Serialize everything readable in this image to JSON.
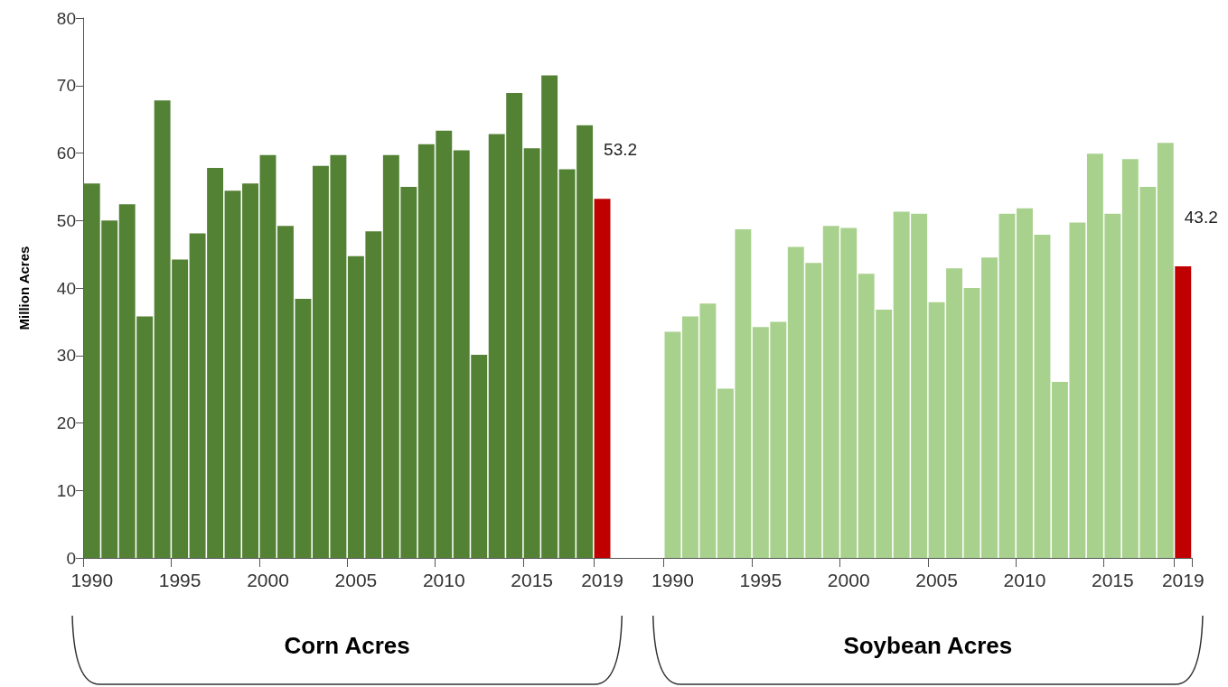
{
  "chart_data": {
    "type": "bar",
    "ylabel": "Million Acres",
    "categories": [
      "1990",
      null,
      null,
      null,
      null,
      "1995",
      null,
      null,
      null,
      null,
      "2000",
      null,
      null,
      null,
      null,
      "2005",
      null,
      null,
      null,
      null,
      "2010",
      null,
      null,
      null,
      null,
      "2015",
      null,
      null,
      null,
      "2019",
      null,
      null,
      null,
      "1990",
      null,
      null,
      null,
      null,
      "1995",
      null,
      null,
      null,
      null,
      "2000",
      null,
      null,
      null,
      null,
      "2005",
      null,
      null,
      null,
      null,
      "2010",
      null,
      null,
      null,
      null,
      "2015",
      null,
      null,
      null,
      "2019"
    ],
    "series": [
      {
        "values": [
          55.5,
          50.0,
          52.4,
          35.8,
          67.8,
          44.2,
          48.1,
          57.8,
          54.4,
          55.5,
          59.7,
          49.2,
          38.4,
          58.1,
          59.7,
          44.7,
          48.4,
          59.7,
          55.0,
          61.3,
          63.3,
          60.4,
          30.1,
          62.8,
          68.9,
          60.7,
          71.5,
          57.6,
          64.1,
          53.2,
          null,
          null,
          null,
          null,
          null,
          null,
          null,
          null,
          null,
          null,
          null,
          null,
          null,
          null,
          null,
          null,
          null,
          null,
          null,
          null,
          null,
          null,
          null,
          null,
          null,
          null,
          null,
          null,
          null,
          null,
          null,
          null,
          null
        ],
        "colors": [
          "#548235",
          "#548235",
          "#548235",
          "#548235",
          "#548235",
          "#548235",
          "#548235",
          "#548235",
          "#548235",
          "#548235",
          "#548235",
          "#548235",
          "#548235",
          "#548235",
          "#548235",
          "#548235",
          "#548235",
          "#548235",
          "#548235",
          "#548235",
          "#548235",
          "#548235",
          "#548235",
          "#548235",
          "#548235",
          "#548235",
          "#548235",
          "#548235",
          "#548235",
          "#c00000",
          null,
          null,
          null,
          null,
          null,
          null,
          null,
          null,
          null,
          null,
          null,
          null,
          null,
          null,
          null,
          null,
          null,
          null,
          null,
          null,
          null,
          null,
          null,
          null,
          null,
          null,
          null,
          null,
          null,
          null,
          null,
          null,
          null
        ],
        "value_labels": [
          null,
          null,
          null,
          null,
          null,
          null,
          null,
          null,
          null,
          null,
          null,
          null,
          null,
          null,
          null,
          null,
          null,
          null,
          null,
          null,
          null,
          null,
          null,
          null,
          null,
          null,
          null,
          null,
          null,
          "53.2",
          null,
          null,
          null,
          null,
          null,
          null,
          null,
          null,
          null,
          null,
          null,
          null,
          null,
          null,
          null,
          null,
          null,
          null,
          null,
          null,
          null,
          null,
          null,
          null,
          null,
          null,
          null,
          null,
          null,
          null,
          null,
          null,
          null
        ]
      },
      {
        "values": [
          null,
          null,
          null,
          null,
          null,
          null,
          null,
          null,
          null,
          null,
          null,
          null,
          null,
          null,
          null,
          null,
          null,
          null,
          null,
          null,
          null,
          null,
          null,
          null,
          null,
          null,
          null,
          null,
          null,
          null,
          null,
          null,
          null,
          33.5,
          35.8,
          37.7,
          25.1,
          48.7,
          34.2,
          35.0,
          46.1,
          43.7,
          49.2,
          48.9,
          42.1,
          36.8,
          51.3,
          51.0,
          37.9,
          42.9,
          40.0,
          44.5,
          51.0,
          51.8,
          47.9,
          26.1,
          49.7,
          59.9,
          51.0,
          59.1,
          55.0,
          61.5,
          43.2
        ],
        "colors": [
          null,
          null,
          null,
          null,
          null,
          null,
          null,
          null,
          null,
          null,
          null,
          null,
          null,
          null,
          null,
          null,
          null,
          null,
          null,
          null,
          null,
          null,
          null,
          null,
          null,
          null,
          null,
          null,
          null,
          null,
          null,
          null,
          null,
          "#a9d18e",
          "#a9d18e",
          "#a9d18e",
          "#a9d18e",
          "#a9d18e",
          "#a9d18e",
          "#a9d18e",
          "#a9d18e",
          "#a9d18e",
          "#a9d18e",
          "#a9d18e",
          "#a9d18e",
          "#a9d18e",
          "#a9d18e",
          "#a9d18e",
          "#a9d18e",
          "#a9d18e",
          "#a9d18e",
          "#a9d18e",
          "#a9d18e",
          "#a9d18e",
          "#a9d18e",
          "#a9d18e",
          "#a9d18e",
          "#a9d18e",
          "#a9d18e",
          "#a9d18e",
          "#a9d18e",
          "#a9d18e",
          "#c00000"
        ],
        "value_labels": [
          null,
          null,
          null,
          null,
          null,
          null,
          null,
          null,
          null,
          null,
          null,
          null,
          null,
          null,
          null,
          null,
          null,
          null,
          null,
          null,
          null,
          null,
          null,
          null,
          null,
          null,
          null,
          null,
          null,
          null,
          null,
          null,
          null,
          null,
          null,
          null,
          null,
          null,
          null,
          null,
          null,
          null,
          null,
          null,
          null,
          null,
          null,
          null,
          null,
          null,
          null,
          null,
          null,
          null,
          null,
          null,
          null,
          null,
          null,
          null,
          null,
          null,
          "43.2"
        ]
      }
    ],
    "ylim": [
      0,
      80
    ],
    "yticks": [
      0,
      10,
      20,
      30,
      40,
      50,
      60,
      70,
      80
    ],
    "annotations": [
      "Corn Acres",
      "Soybean Acres"
    ]
  }
}
